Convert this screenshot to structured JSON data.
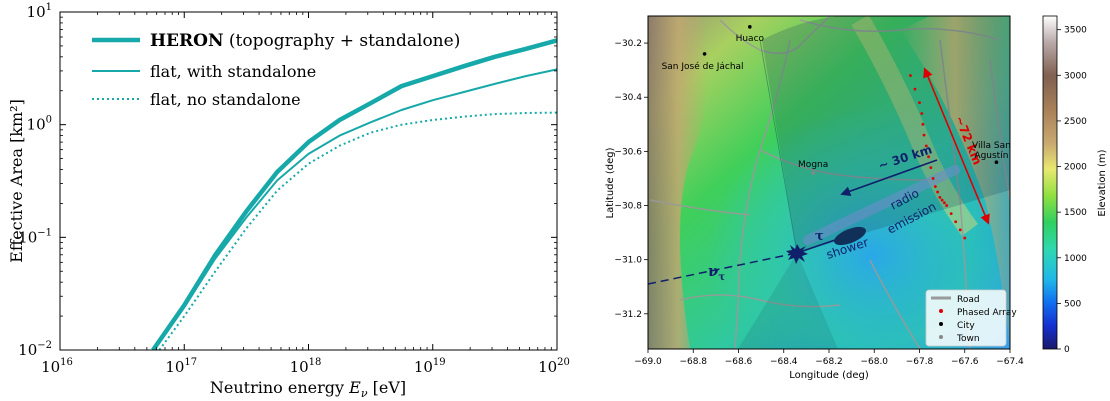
{
  "colors": {
    "teal": "#17A9A9",
    "road": "#9a9a9a",
    "phased_array": "#e00000",
    "city": "#000000",
    "town": "#888888",
    "tau_arrow": "#10206a",
    "distance_arrow": "#dd0000"
  },
  "chart_data": [
    {
      "type": "line",
      "xlabel_prefix": "Neutrino energy",
      "xlabel_symbol": "E",
      "xlabel_sub": "ν",
      "xlabel_unit": "[eV]",
      "ylabel": "Effective Area [km²]",
      "xscale": "log",
      "yscale": "log",
      "xlim": [
        1e+16,
        1e+20
      ],
      "ylim": [
        0.01,
        10
      ],
      "x_tick_labels": [
        {
          "base": "10",
          "exp": "16",
          "value": 1e+16
        },
        {
          "base": "10",
          "exp": "17",
          "value": 1e+17
        },
        {
          "base": "10",
          "exp": "18",
          "value": 1e+18
        },
        {
          "base": "10",
          "exp": "19",
          "value": 1e+19
        },
        {
          "base": "10",
          "exp": "20",
          "value": 1e+20
        }
      ],
      "y_tick_labels": [
        {
          "base": "10",
          "exp": "−2",
          "value": 0.01
        },
        {
          "base": "10",
          "exp": "−1",
          "value": 0.1
        },
        {
          "base": "10",
          "exp": "0",
          "value": 1
        },
        {
          "base": "10",
          "exp": "1",
          "value": 10
        }
      ],
      "legend_position": "top-left",
      "series": [
        {
          "name_bold": "HERON",
          "name_rest": "(topography + standalone)",
          "style": "thick",
          "x": [
            5.6e+16,
            1e+17,
            1.78e+17,
            3.16e+17,
            5.6e+17,
            1e+18,
            1.78e+18,
            3.16e+18,
            5.6e+18,
            1e+19,
            1.78e+19,
            3.16e+19,
            5.6e+19,
            1e+20
          ],
          "y": [
            0.01,
            0.025,
            0.07,
            0.17,
            0.38,
            0.7,
            1.1,
            1.55,
            2.2,
            2.7,
            3.3,
            4.0,
            4.7,
            5.6
          ]
        },
        {
          "name_bold": "",
          "name_rest": "flat, with standalone",
          "style": "thin",
          "x": [
            5.6e+16,
            1e+17,
            1.78e+17,
            3.16e+17,
            5.6e+17,
            1e+18,
            1.78e+18,
            3.16e+18,
            5.6e+18,
            1e+19,
            1.78e+19,
            3.16e+19,
            5.6e+19,
            1e+20
          ],
          "y": [
            0.01,
            0.024,
            0.065,
            0.15,
            0.32,
            0.55,
            0.8,
            1.05,
            1.35,
            1.65,
            1.95,
            2.3,
            2.7,
            3.1
          ]
        },
        {
          "name_bold": "",
          "name_rest": "flat, no standalone",
          "style": "dotted",
          "x": [
            6.3e+16,
            1e+17,
            1.78e+17,
            3.16e+17,
            5.6e+17,
            1e+18,
            1.78e+18,
            3.16e+18,
            5.6e+18,
            1e+19,
            1.78e+19,
            3.16e+19,
            5.6e+19,
            1e+20
          ],
          "y": [
            0.01,
            0.02,
            0.05,
            0.12,
            0.26,
            0.45,
            0.65,
            0.85,
            1.0,
            1.1,
            1.18,
            1.24,
            1.27,
            1.28
          ]
        }
      ]
    },
    {
      "type": "heatmap",
      "xlabel": "Longitude (deg)",
      "ylabel": "Latitude (deg)",
      "xlim": [
        -69.0,
        -67.4
      ],
      "ylim": [
        -31.33,
        -30.1
      ],
      "x_ticks": [
        -69.0,
        -68.8,
        -68.6,
        -68.4,
        -68.2,
        -68.0,
        -67.8,
        -67.6,
        -67.4
      ],
      "x_tick_labels": [
        "−69.0",
        "−68.8",
        "−68.6",
        "−68.4",
        "−68.2",
        "−68.0",
        "−67.8",
        "−67.6",
        "−67.4"
      ],
      "y_ticks": [
        -30.2,
        -30.4,
        -30.6,
        -30.8,
        -31.0,
        -31.2
      ],
      "y_tick_labels": [
        "−30.2",
        "−30.4",
        "−30.6",
        "−30.8",
        "−31.0",
        "−31.2"
      ],
      "colorbar": {
        "label": "Elevation (m)",
        "range": [
          0,
          3650
        ],
        "ticks": [
          0,
          500,
          1000,
          1500,
          2000,
          2500,
          3000,
          3500
        ],
        "tick_labels": [
          "0",
          "500",
          "1000",
          "1500",
          "2000",
          "2500",
          "3000",
          "3500"
        ]
      },
      "places": [
        {
          "name": "Huaco",
          "lon": -68.55,
          "lat": -30.14,
          "kind": "city"
        },
        {
          "name": "San José de Jáchal",
          "lon": -68.75,
          "lat": -30.24,
          "kind": "city"
        },
        {
          "name": "Mogna",
          "lon": -68.27,
          "lat": -30.68,
          "kind": "town"
        },
        {
          "name": "Villa San Agustín",
          "lon": -67.46,
          "lat": -30.64,
          "kind": "city"
        }
      ],
      "phased_array": {
        "lon": [
          -67.84,
          -67.8,
          -67.79,
          -67.77,
          -67.74,
          -67.72,
          -67.71,
          -67.7,
          -67.68,
          -67.64,
          -67.6
        ],
        "lat": [
          -30.35,
          -30.45,
          -30.55,
          -30.62,
          -30.7,
          -30.75,
          -30.78,
          -30.79,
          -30.8,
          -30.85,
          -30.9
        ]
      },
      "annotations": {
        "tau_distance": "~ 30 km",
        "array_length": "~72 km",
        "shower": "shower",
        "radio": "radio",
        "emission": "emission",
        "tau": "τ",
        "nu": "ν",
        "nu_sub": "τ"
      },
      "legend_position": "bottom-right",
      "legend": [
        {
          "label": "Road",
          "marker": "line"
        },
        {
          "label": "Phased Array",
          "marker": "dot-red"
        },
        {
          "label": "City",
          "marker": "dot-black"
        },
        {
          "label": "Town",
          "marker": "dot-gray"
        }
      ]
    }
  ]
}
